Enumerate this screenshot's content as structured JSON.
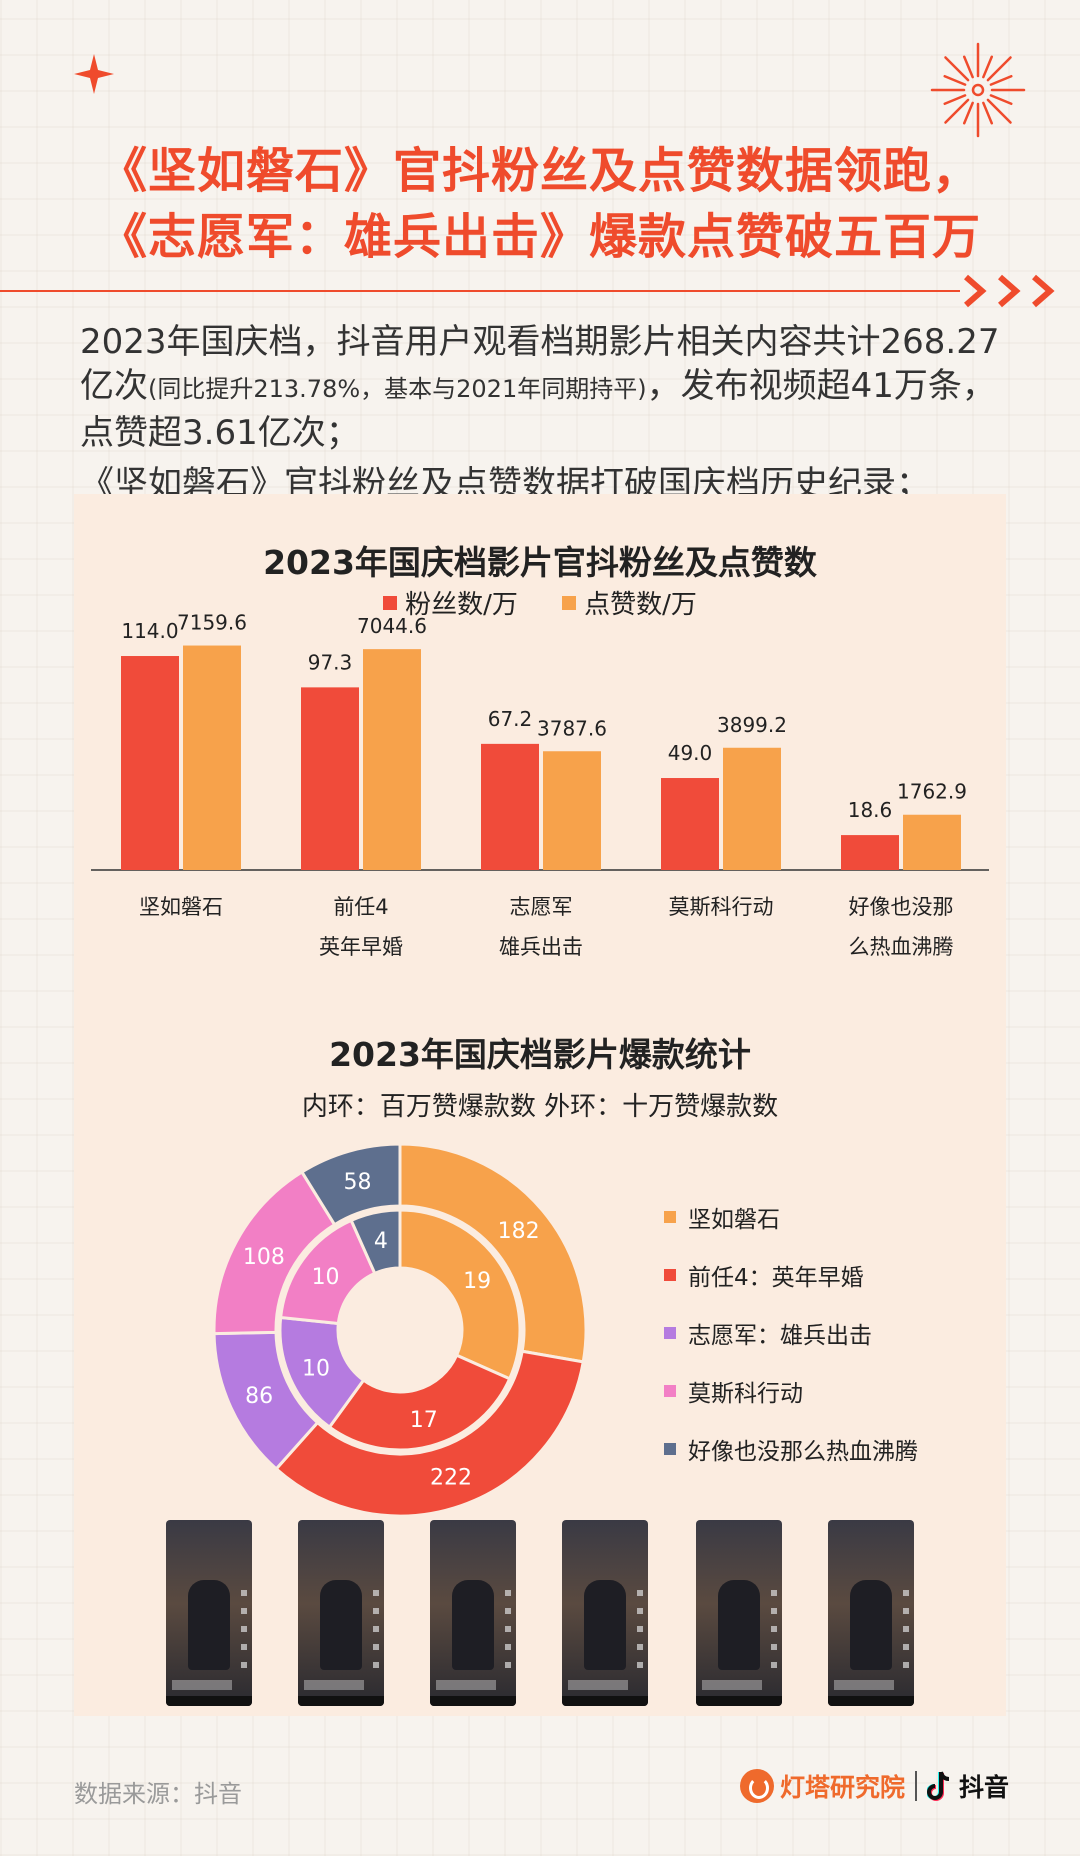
{
  "headline": {
    "line1": "《坚如磐石》官抖粉丝及点赞数据领跑，",
    "line2": "《志愿军：雄兵出击》爆款点赞破五百万"
  },
  "intro": {
    "part1": "2023年国庆档，抖音用户观看档期影片相关内容共计268.27亿次",
    "part2_small": "(同比提升213.78%，基本与2021年同期持平)",
    "part3": "，发布视频超41万条，点赞超3.61亿次；",
    "line2": "《坚如磐石》官抖粉丝及点赞数据打破国庆档历史纪录；"
  },
  "colors": {
    "accent": "#ef4b2c",
    "fans": "#f04b3a",
    "likes": "#f7a24b",
    "purple": "#b57be0",
    "pink": "#f27fc5",
    "slate": "#5e6f8e"
  },
  "chart_data": [
    {
      "type": "bar",
      "title": "2023年国庆档影片官抖粉丝及点赞数",
      "categories": [
        [
          "坚如磐石"
        ],
        [
          "前任4",
          "英年早婚"
        ],
        [
          "志愿军",
          "雄兵出击"
        ],
        [
          "莫斯科行动"
        ],
        [
          "好像也没那",
          "么热血沸腾"
        ]
      ],
      "series": [
        {
          "name": "粉丝数/万",
          "values": [
            114.0,
            97.3,
            67.2,
            49.0,
            18.6
          ],
          "labels": [
            "114.0",
            "97.3",
            "67.2",
            "49.0",
            "18.6"
          ]
        },
        {
          "name": "点赞数/万",
          "values": [
            7159.6,
            7044.6,
            3787.6,
            3899.2,
            1762.9
          ],
          "labels": [
            "7159.6",
            "7044.6",
            "3787.6",
            "3899.2",
            "1762.9"
          ]
        }
      ],
      "note": "dual scale: fans and likes plotted on separate unlabelled axes",
      "legend": "top-center",
      "grid": false
    },
    {
      "type": "pie",
      "variant": "double-donut",
      "title": "2023年国庆档影片爆款统计",
      "subtitle": "内环：百万赞爆款数  外环：十万赞爆款数",
      "categories": [
        "坚如磐石",
        "前任4：英年早婚",
        "志愿军：雄兵出击",
        "莫斯科行动",
        "好像也没那么热血沸腾"
      ],
      "series": [
        {
          "name": "内环",
          "values": [
            19,
            17,
            10,
            10,
            4
          ]
        },
        {
          "name": "外环",
          "values": [
            182,
            222,
            86,
            108,
            58
          ]
        }
      ],
      "slice_order": [
        0,
        1,
        2,
        3,
        4
      ],
      "legend": "right"
    }
  ],
  "source": "数据来源：抖音",
  "logos": {
    "brand1": "灯塔研究院",
    "brand2": "抖音"
  }
}
